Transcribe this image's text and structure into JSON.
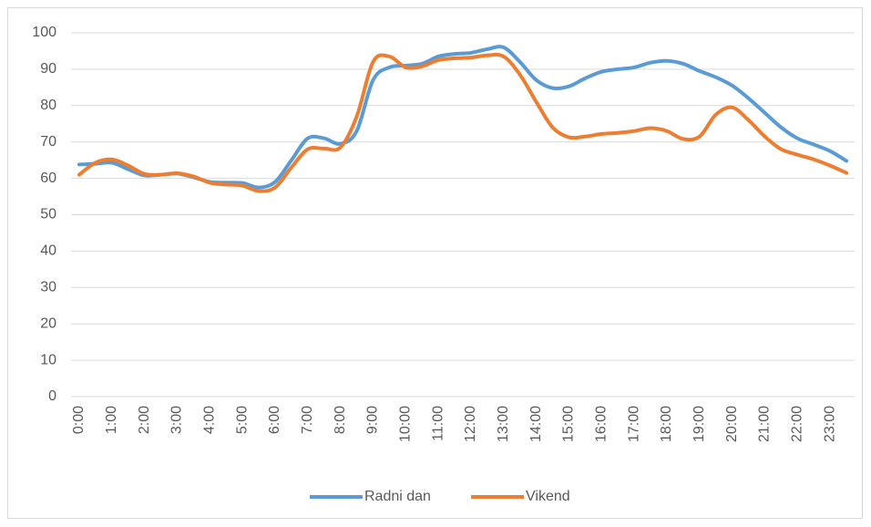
{
  "chart_data": {
    "type": "line",
    "categories": [
      "0:00",
      null,
      "1:00",
      null,
      "2:00",
      null,
      "3:00",
      null,
      "4:00",
      null,
      "5:00",
      null,
      "6:00",
      null,
      "7:00",
      null,
      "8:00",
      null,
      "9:00",
      null,
      "10:00",
      null,
      "11:00",
      null,
      "12:00",
      null,
      "13:00",
      null,
      "14:00",
      null,
      "15:00",
      null,
      "16:00",
      null,
      "17:00",
      null,
      "18:00",
      null,
      "19:00",
      null,
      "20:00",
      null,
      "21:00",
      null,
      "22:00",
      null,
      "23:00",
      null
    ],
    "series": [
      {
        "name": "Radni dan",
        "color": "#5b9bd5",
        "values": [
          63.8,
          64,
          64.3,
          62.5,
          60.8,
          61,
          61.3,
          60.3,
          59,
          58.8,
          58.7,
          57.5,
          59,
          65,
          71,
          71,
          69.5,
          73,
          87,
          90.5,
          91,
          91.5,
          93.5,
          94.2,
          94.5,
          95.5,
          96,
          92,
          87,
          84.8,
          85.3,
          87.5,
          89.3,
          90,
          90.5,
          91.8,
          92.3,
          91.5,
          89.5,
          87.8,
          85.5,
          82,
          78,
          74,
          71,
          69.3,
          67.5,
          64.8
        ]
      },
      {
        "name": "Vikend",
        "color": "#ed7d31",
        "values": [
          61,
          64.3,
          65.2,
          63.5,
          61.2,
          61,
          61.4,
          60.5,
          58.8,
          58.3,
          58,
          56.5,
          57.5,
          63,
          68,
          68.2,
          68.5,
          77,
          92,
          93.5,
          90.5,
          90.8,
          92.5,
          93,
          93.2,
          93.8,
          93.5,
          88.5,
          81,
          74,
          71.3,
          71.5,
          72.2,
          72.5,
          73,
          73.8,
          73,
          70.8,
          71.5,
          77.5,
          79.5,
          76,
          71.5,
          68,
          66.5,
          65.2,
          63.5,
          61.5
        ]
      }
    ],
    "ylim": [
      0,
      100
    ],
    "yticks": [
      0,
      10,
      20,
      30,
      40,
      50,
      60,
      70,
      80,
      90,
      100
    ],
    "grid": true,
    "legend": "bottom"
  }
}
